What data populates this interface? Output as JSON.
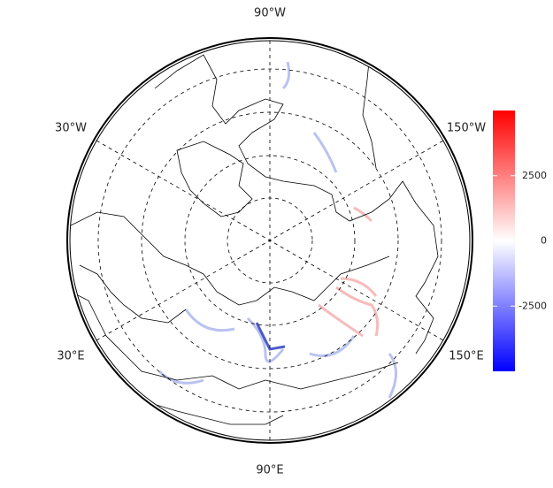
{
  "map": {
    "lon_labels": {
      "top": "90°W",
      "upper_left": "30°W",
      "upper_right": "150°W",
      "lower_left": "30°E",
      "lower_right": "150°E",
      "bottom": "90°E"
    }
  },
  "colorbar": {
    "range": [
      -5000,
      5000
    ],
    "ticks": [
      2500,
      0,
      -2500
    ],
    "colors": [
      "#0000ff",
      "#ffffff",
      "#ff0000"
    ]
  }
}
